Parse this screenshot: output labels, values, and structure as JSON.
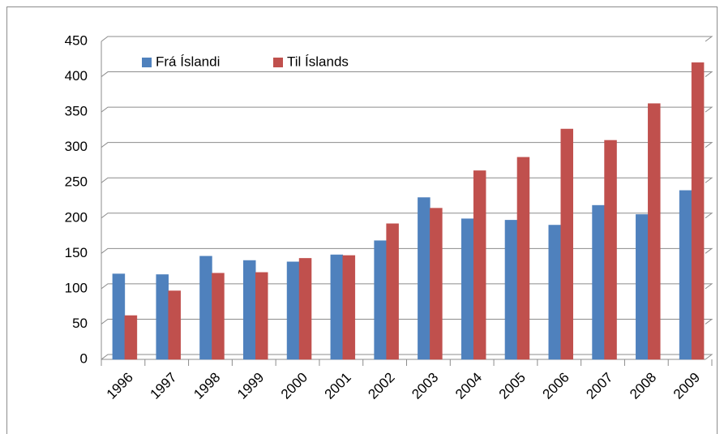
{
  "chart_data": {
    "type": "bar",
    "categories": [
      "1996",
      "1997",
      "1998",
      "1999",
      "2000",
      "2001",
      "2002",
      "2003",
      "2004",
      "2005",
      "2006",
      "2007",
      "2008",
      "2009"
    ],
    "series": [
      {
        "name": "Frá Íslandi",
        "color": "#4f81bd",
        "values": [
          121,
          120,
          146,
          140,
          138,
          148,
          168,
          229,
          199,
          197,
          190,
          218,
          205,
          239
        ]
      },
      {
        "name": "Til Íslands",
        "color": "#c0504d",
        "values": [
          62,
          97,
          122,
          123,
          143,
          147,
          192,
          214,
          267,
          286,
          326,
          310,
          362,
          420
        ]
      }
    ],
    "ylim": [
      0,
      450
    ],
    "yticks": [
      0,
      50,
      100,
      150,
      200,
      250,
      300,
      350,
      400,
      450
    ],
    "grid": true,
    "legend": "top-left"
  }
}
